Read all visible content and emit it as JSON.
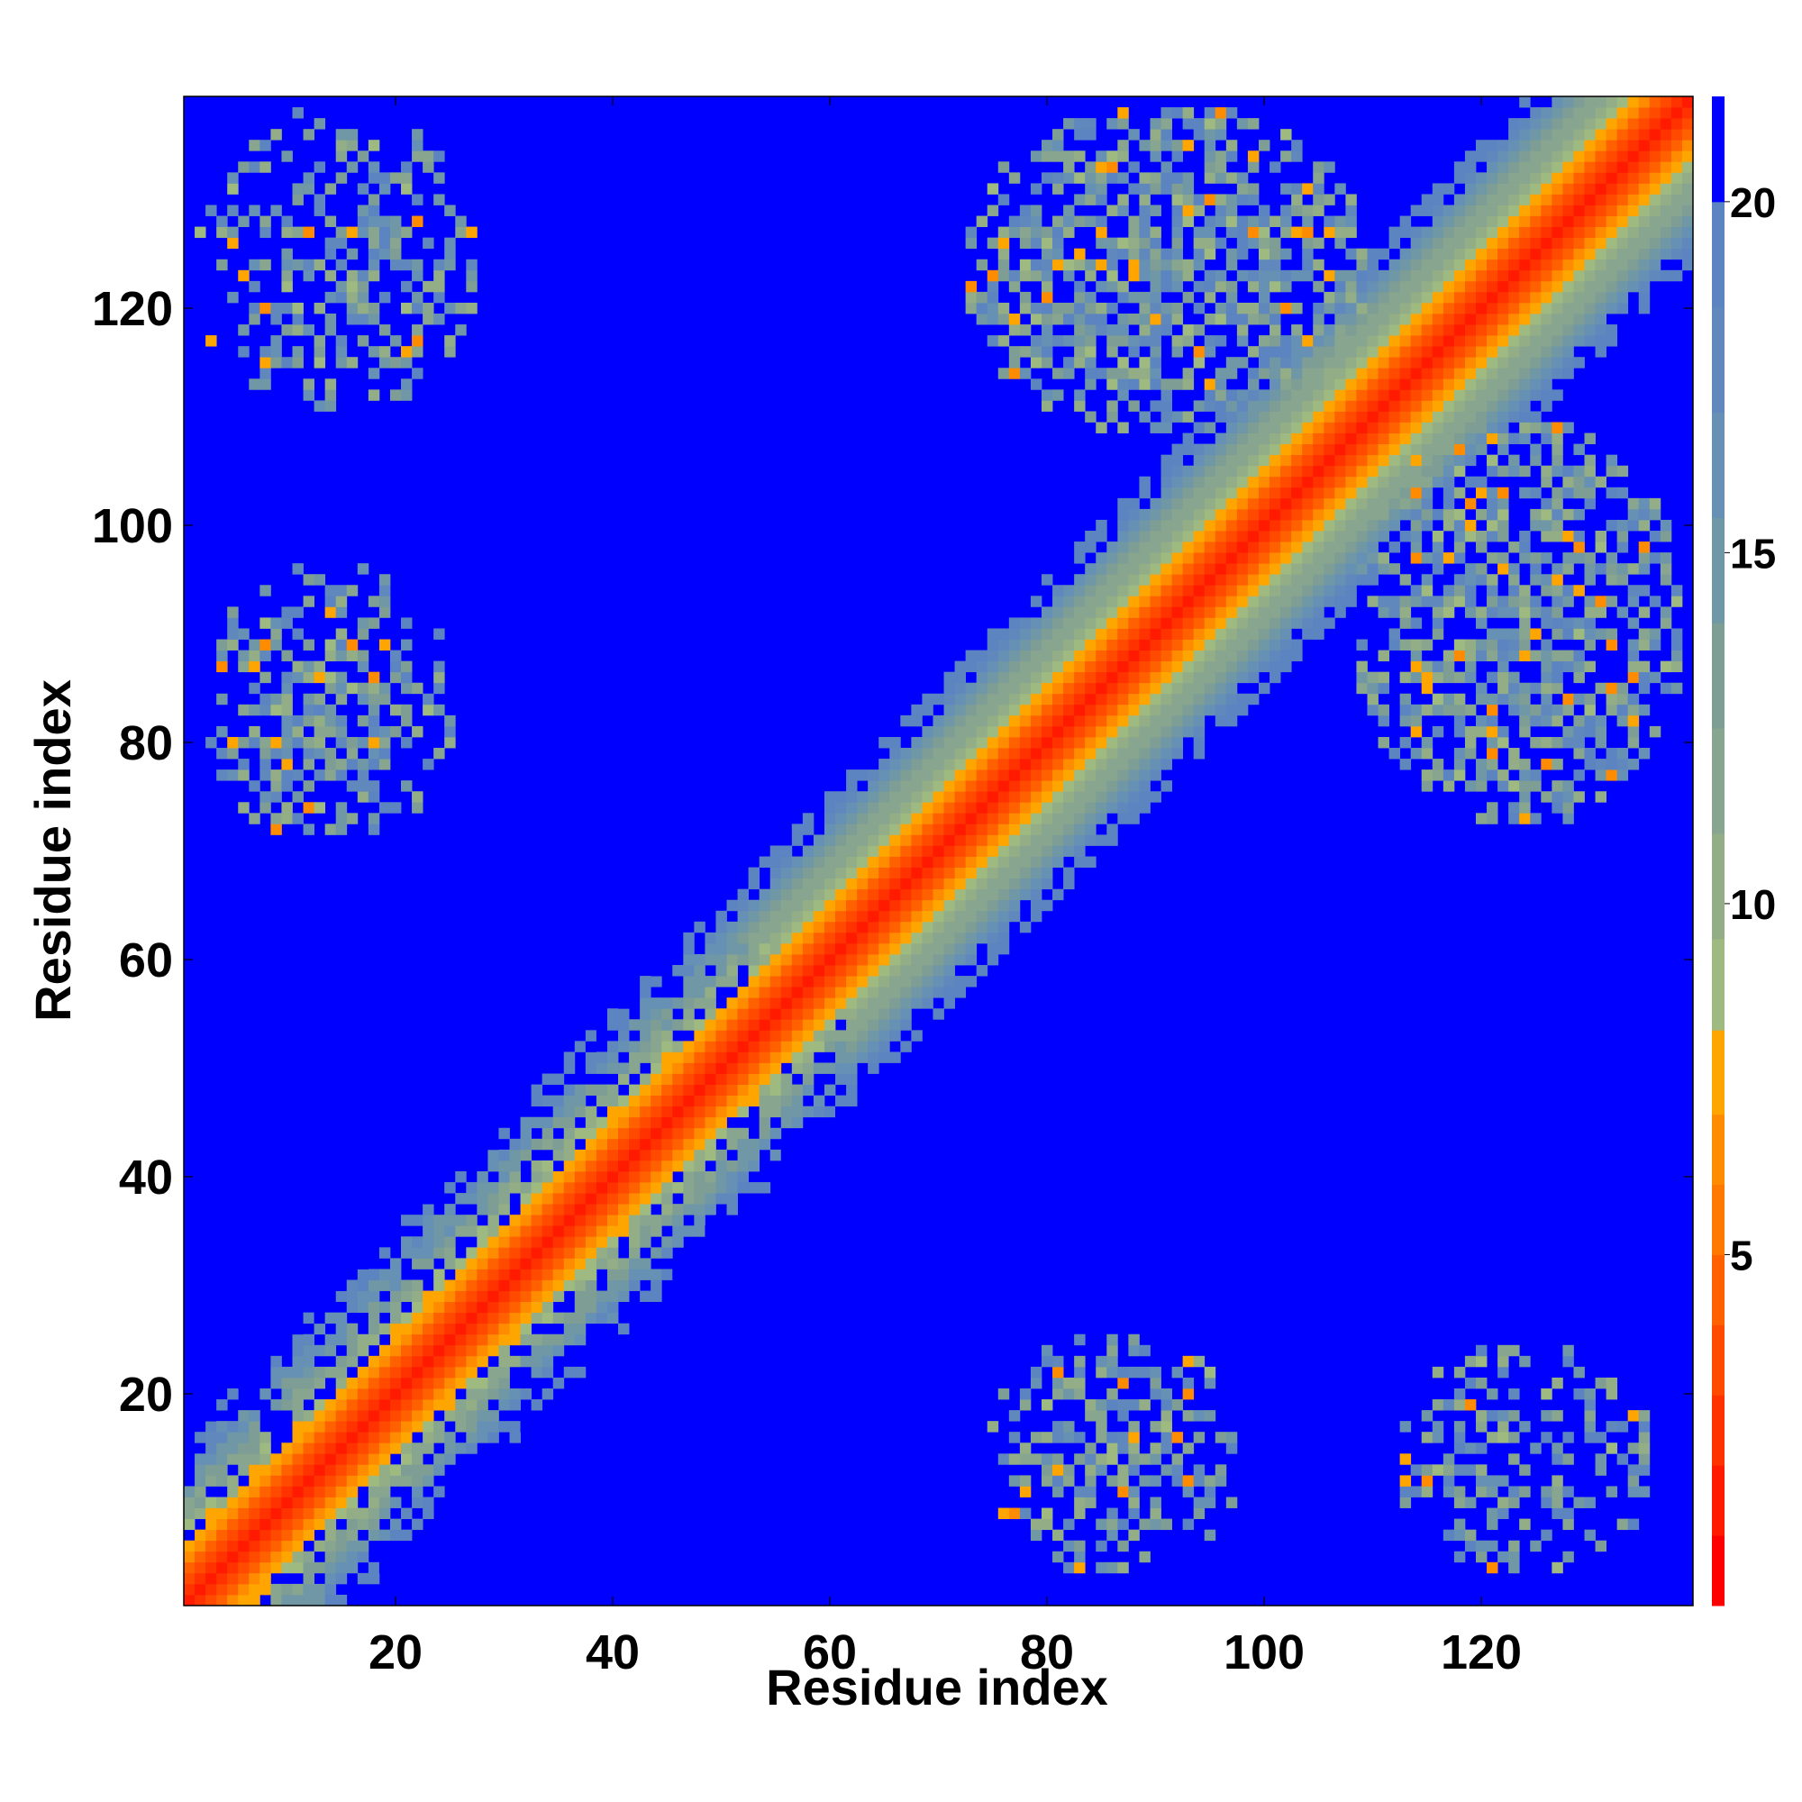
{
  "chart_data": {
    "type": "heatmap",
    "title": "",
    "xlabel": "Residue index",
    "ylabel": "Residue index",
    "n_residues": 139,
    "xlim": [
      1,
      139
    ],
    "ylim": [
      1,
      139
    ],
    "xticks": [
      20,
      40,
      60,
      80,
      100,
      120
    ],
    "yticks": [
      20,
      40,
      60,
      80,
      100,
      120
    ],
    "colorbar": {
      "range": [
        0,
        21.5
      ],
      "ticks": [
        5,
        10,
        15,
        20
      ],
      "levels": [
        {
          "max": 1,
          "color": "#ff0000"
        },
        {
          "max": 2,
          "color": "#ff1a00"
        },
        {
          "max": 3,
          "color": "#ff3200"
        },
        {
          "max": 4,
          "color": "#ff4a00"
        },
        {
          "max": 5,
          "color": "#ff6000"
        },
        {
          "max": 6,
          "color": "#ff7800"
        },
        {
          "max": 7,
          "color": "#ff8c00"
        },
        {
          "max": 8.2,
          "color": "#ffa500"
        },
        {
          "max": 9.5,
          "color": "#9fba80"
        },
        {
          "max": 11,
          "color": "#93ad86"
        },
        {
          "max": 12.5,
          "color": "#88a58f"
        },
        {
          "max": 14,
          "color": "#7e9e95"
        },
        {
          "max": 15.5,
          "color": "#6f97a6"
        },
        {
          "max": 17,
          "color": "#6690b4"
        },
        {
          "max": 18.5,
          "color": "#6088bd"
        },
        {
          "max": 20,
          "color": "#5b84c0"
        },
        {
          "max": 21.5,
          "color": "#0000ff"
        }
      ]
    },
    "background_color": "#0000ff",
    "diagonal_band_halfwidth": 15,
    "contact_blocks": [
      {
        "x_range": [
          1,
          28
        ],
        "y_range": [
          110,
          139
        ],
        "density": 0.55
      },
      {
        "x_range": [
          2,
          26
        ],
        "y_range": [
          70,
          97
        ],
        "density": 0.6
      },
      {
        "x_range": [
          74,
          98
        ],
        "y_range": [
          3,
          26
        ],
        "density": 0.6
      },
      {
        "x_range": [
          112,
          136
        ],
        "y_range": [
          3,
          25
        ],
        "density": 0.5
      },
      {
        "x_range": [
          72,
          110
        ],
        "y_range": [
          108,
          139
        ],
        "density": 0.75
      },
      {
        "x_range": [
          108,
          139
        ],
        "y_range": [
          72,
          110
        ],
        "density": 0.75
      }
    ]
  }
}
